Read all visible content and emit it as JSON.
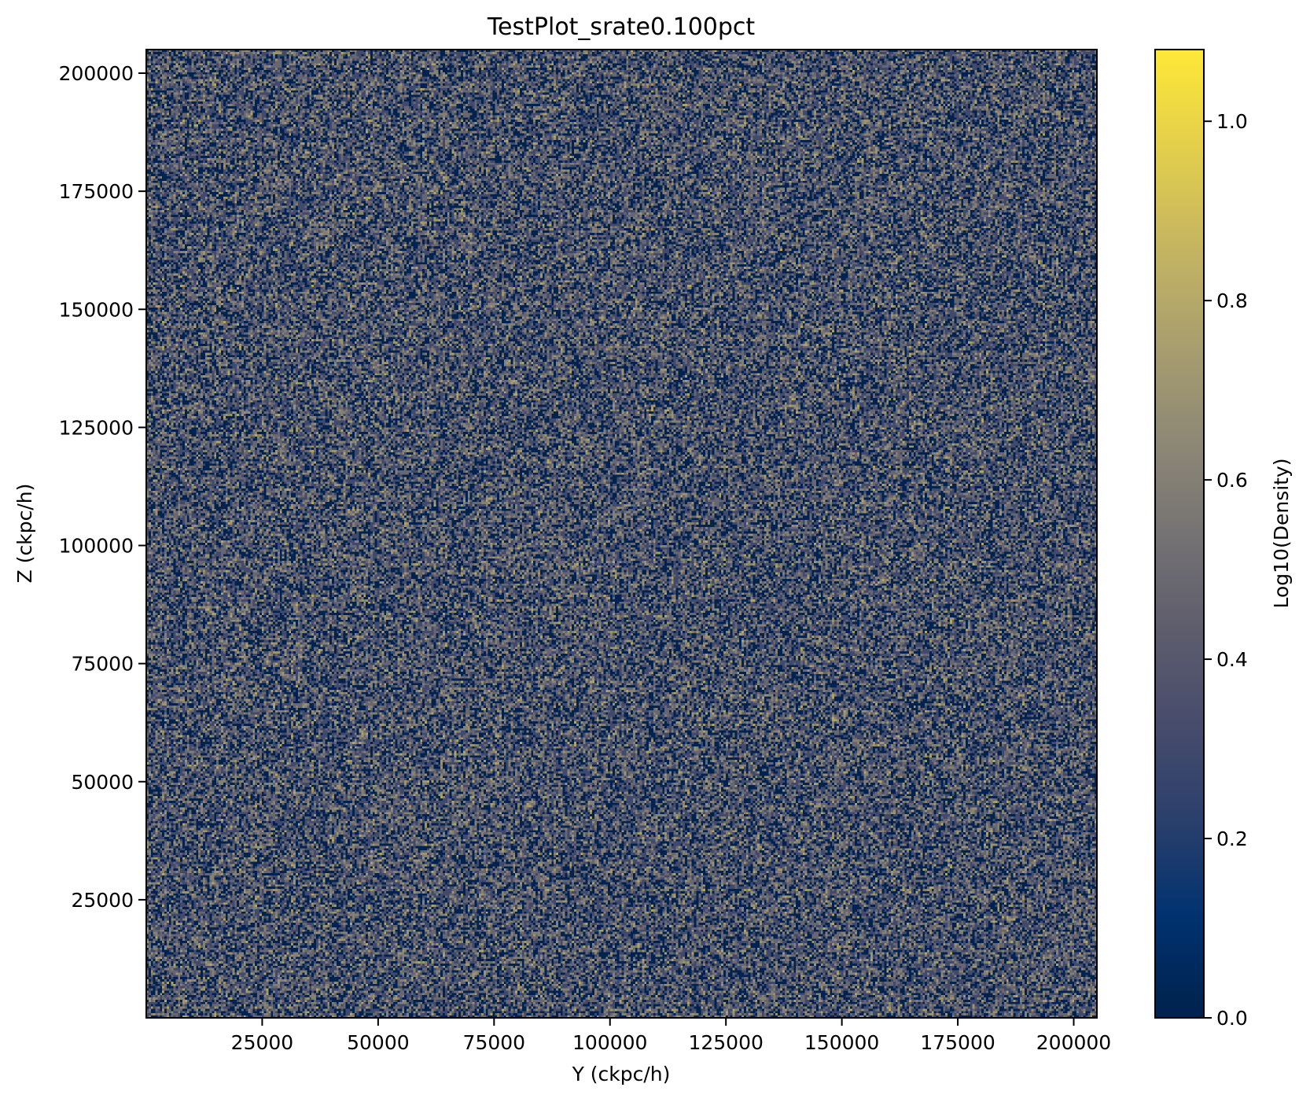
{
  "chart_data": {
    "type": "heatmap",
    "title": "TestPlot_srate0.100pct",
    "xlabel": "Y (ckpc/h)",
    "ylabel": "Z (ckpc/h)",
    "xlim": [
      0,
      205000
    ],
    "ylim": [
      0,
      205000
    ],
    "x_ticks": [
      25000,
      50000,
      75000,
      100000,
      125000,
      150000,
      175000,
      200000
    ],
    "y_ticks": [
      25000,
      50000,
      75000,
      100000,
      125000,
      150000,
      175000,
      200000
    ],
    "colorbar": {
      "label": "Log10(Density)",
      "range": [
        0.0,
        1.08
      ],
      "ticks": [
        0.0,
        0.2,
        0.4,
        0.6,
        0.8,
        1.0
      ],
      "colormap": "cividis"
    },
    "grid": false,
    "data_description_visible": "dense speckled field of low density values (mostly 0.0 to ~0.8) spread uniformly across the box"
  }
}
